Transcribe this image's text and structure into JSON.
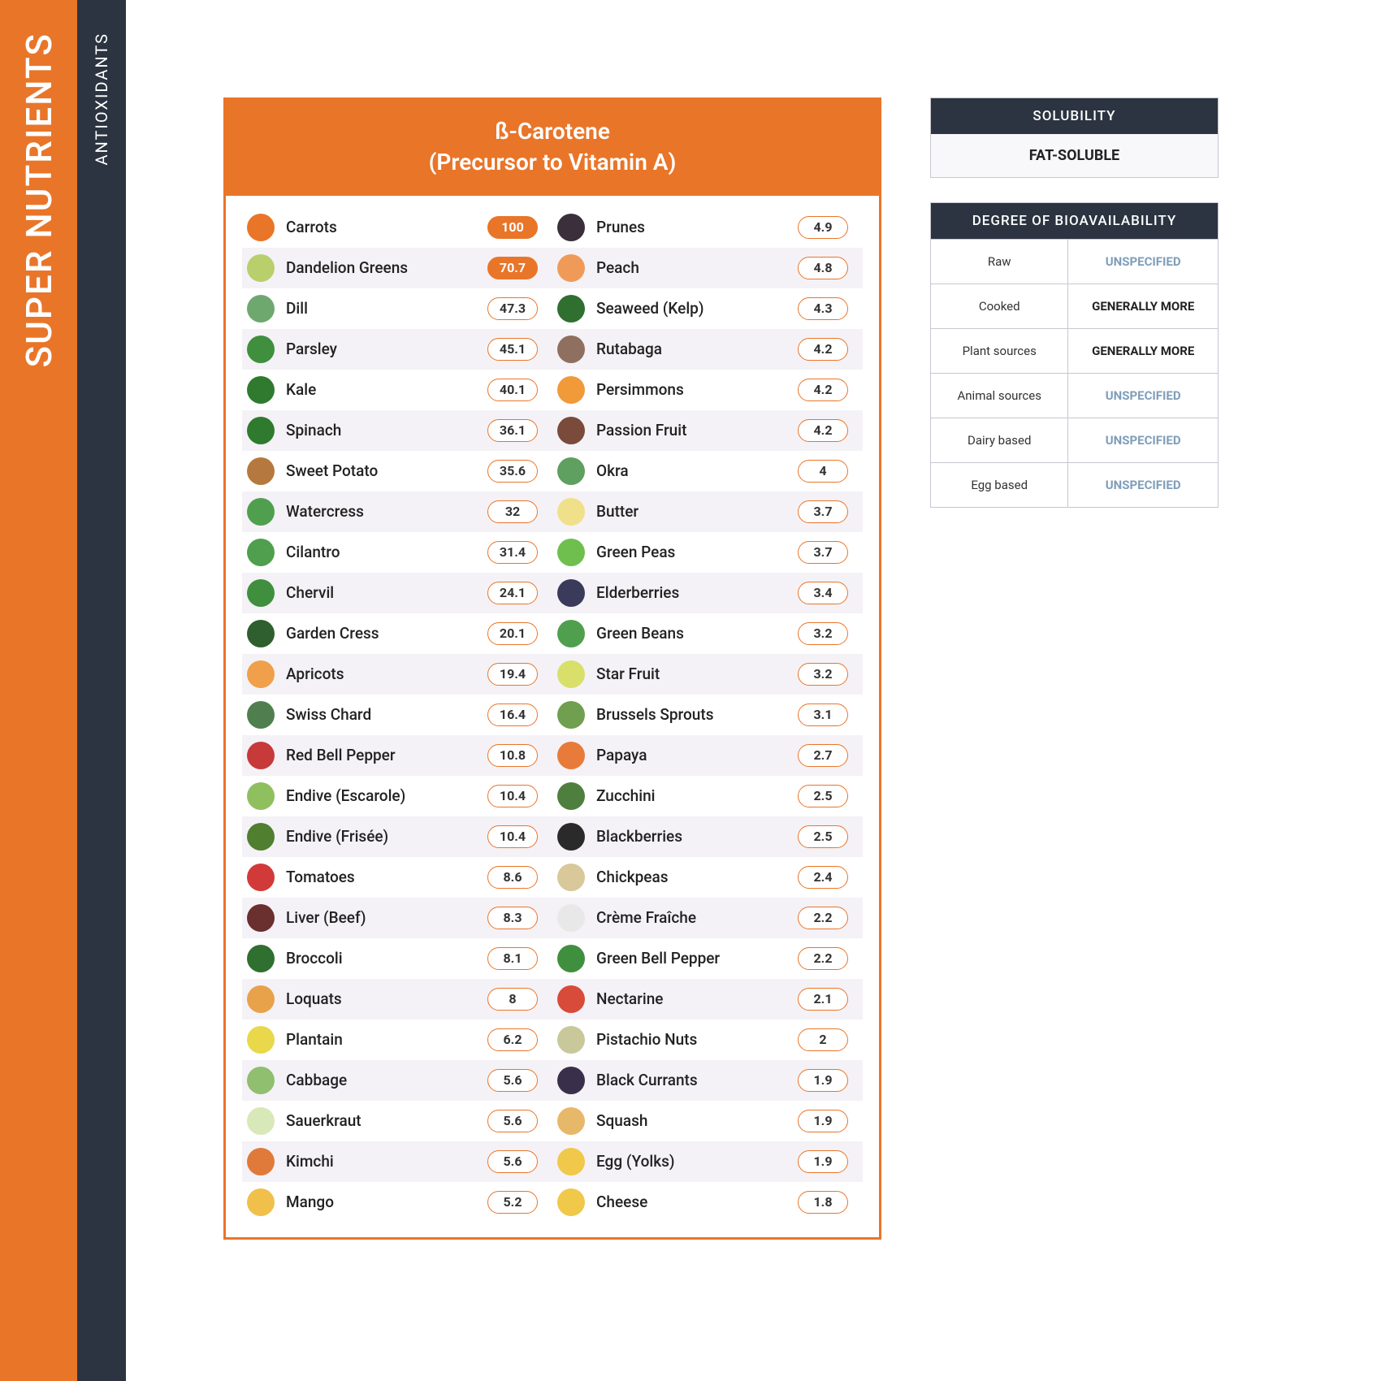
{
  "sidebar": {
    "main_label": "SUPER NUTRIENTS",
    "sub_label": "ANTIOXIDANTS"
  },
  "card": {
    "title_line1": "ß-Carotene",
    "title_line2": "(Precursor to Vitamin A)"
  },
  "foods_left": [
    {
      "name": "Carrots",
      "value": "100",
      "solid": true,
      "color": "#e97529"
    },
    {
      "name": "Dandelion Greens",
      "value": "70.7",
      "solid": true,
      "color": "#b8cf6b"
    },
    {
      "name": "Dill",
      "value": "47.3",
      "solid": false,
      "color": "#6fa86f"
    },
    {
      "name": "Parsley",
      "value": "45.1",
      "solid": false,
      "color": "#3f8f3f"
    },
    {
      "name": "Kale",
      "value": "40.1",
      "solid": false,
      "color": "#2f7a2f"
    },
    {
      "name": "Spinach",
      "value": "36.1",
      "solid": false,
      "color": "#2f7a2f"
    },
    {
      "name": "Sweet Potato",
      "value": "35.6",
      "solid": false,
      "color": "#b5793f"
    },
    {
      "name": "Watercress",
      "value": "32",
      "solid": false,
      "color": "#4f9f4f"
    },
    {
      "name": "Cilantro",
      "value": "31.4",
      "solid": false,
      "color": "#4f9f4f"
    },
    {
      "name": "Chervil",
      "value": "24.1",
      "solid": false,
      "color": "#3f8f3f"
    },
    {
      "name": "Garden Cress",
      "value": "20.1",
      "solid": false,
      "color": "#2f5f2f"
    },
    {
      "name": "Apricots",
      "value": "19.4",
      "solid": false,
      "color": "#f0a04a"
    },
    {
      "name": "Swiss Chard",
      "value": "16.4",
      "solid": false,
      "color": "#4f7f4f"
    },
    {
      "name": "Red Bell Pepper",
      "value": "10.8",
      "solid": false,
      "color": "#c73a3a"
    },
    {
      "name": "Endive (Escarole)",
      "value": "10.4",
      "solid": false,
      "color": "#8fbf5f"
    },
    {
      "name": "Endive (Frisée)",
      "value": "10.4",
      "solid": false,
      "color": "#4f7f2f"
    },
    {
      "name": "Tomatoes",
      "value": "8.6",
      "solid": false,
      "color": "#d23a3a"
    },
    {
      "name": "Liver (Beef)",
      "value": "8.3",
      "solid": false,
      "color": "#6a2f2f"
    },
    {
      "name": "Broccoli",
      "value": "8.1",
      "solid": false,
      "color": "#2f6f2f"
    },
    {
      "name": "Loquats",
      "value": "8",
      "solid": false,
      "color": "#e8a24a"
    },
    {
      "name": "Plantain",
      "value": "6.2",
      "solid": false,
      "color": "#e8d84a"
    },
    {
      "name": "Cabbage",
      "value": "5.6",
      "solid": false,
      "color": "#8fbf6f"
    },
    {
      "name": "Sauerkraut",
      "value": "5.6",
      "solid": false,
      "color": "#d8e8b8"
    },
    {
      "name": "Kimchi",
      "value": "5.6",
      "solid": false,
      "color": "#e07a3a"
    },
    {
      "name": "Mango",
      "value": "5.2",
      "solid": false,
      "color": "#f0c04a"
    }
  ],
  "foods_right": [
    {
      "name": "Prunes",
      "value": "4.9",
      "solid": false,
      "color": "#3a2f3a"
    },
    {
      "name": "Peach",
      "value": "4.8",
      "solid": false,
      "color": "#f09a5a"
    },
    {
      "name": "Seaweed (Kelp)",
      "value": "4.3",
      "solid": false,
      "color": "#2f6f2f"
    },
    {
      "name": "Rutabaga",
      "value": "4.2",
      "solid": false,
      "color": "#8f6f5f"
    },
    {
      "name": "Persimmons",
      "value": "4.2",
      "solid": false,
      "color": "#f09a3a"
    },
    {
      "name": "Passion Fruit",
      "value": "4.2",
      "solid": false,
      "color": "#7a4a3a"
    },
    {
      "name": "Okra",
      "value": "4",
      "solid": false,
      "color": "#5f9f5f"
    },
    {
      "name": "Butter",
      "value": "3.7",
      "solid": false,
      "color": "#f0e08a"
    },
    {
      "name": "Green Peas",
      "value": "3.7",
      "solid": false,
      "color": "#6fbf4f"
    },
    {
      "name": "Elderberries",
      "value": "3.4",
      "solid": false,
      "color": "#3a3a5a"
    },
    {
      "name": "Green Beans",
      "value": "3.2",
      "solid": false,
      "color": "#4f9f4f"
    },
    {
      "name": "Star Fruit",
      "value": "3.2",
      "solid": false,
      "color": "#d8e06a"
    },
    {
      "name": "Brussels Sprouts",
      "value": "3.1",
      "solid": false,
      "color": "#6f9f4f"
    },
    {
      "name": "Papaya",
      "value": "2.7",
      "solid": false,
      "color": "#e87a3a"
    },
    {
      "name": "Zucchini",
      "value": "2.5",
      "solid": false,
      "color": "#4f7f3f"
    },
    {
      "name": "Blackberries",
      "value": "2.5",
      "solid": false,
      "color": "#2a2a2a"
    },
    {
      "name": "Chickpeas",
      "value": "2.4",
      "solid": false,
      "color": "#d8c89a"
    },
    {
      "name": "Crème Fraîche",
      "value": "2.2",
      "solid": false,
      "color": "#e8e8e8"
    },
    {
      "name": "Green Bell Pepper",
      "value": "2.2",
      "solid": false,
      "color": "#3f8f3f"
    },
    {
      "name": "Nectarine",
      "value": "2.1",
      "solid": false,
      "color": "#d84a3a"
    },
    {
      "name": "Pistachio Nuts",
      "value": "2",
      "solid": false,
      "color": "#c8c89a"
    },
    {
      "name": "Black Currants",
      "value": "1.9",
      "solid": false,
      "color": "#3a2f4a"
    },
    {
      "name": "Squash",
      "value": "1.9",
      "solid": false,
      "color": "#e8b86a"
    },
    {
      "name": "Egg (Yolks)",
      "value": "1.9",
      "solid": false,
      "color": "#f0c84a"
    },
    {
      "name": "Cheese",
      "value": "1.8",
      "solid": false,
      "color": "#f0c84a"
    }
  ],
  "solubility": {
    "header": "SOLUBILITY",
    "value": "FAT-SOLUBLE"
  },
  "bioavailability": {
    "header": "DEGREE OF BIOAVAILABILITY",
    "rows": [
      {
        "label": "Raw",
        "value": "UNSPECIFIED",
        "spec": false
      },
      {
        "label": "Cooked",
        "value": "GENERALLY MORE",
        "spec": true
      },
      {
        "label": "Plant sources",
        "value": "GENERALLY MORE",
        "spec": true
      },
      {
        "label": "Animal sources",
        "value": "UNSPECIFIED",
        "spec": false
      },
      {
        "label": "Dairy based",
        "value": "UNSPECIFIED",
        "spec": false
      },
      {
        "label": "Egg based",
        "value": "UNSPECIFIED",
        "spec": false
      }
    ]
  }
}
